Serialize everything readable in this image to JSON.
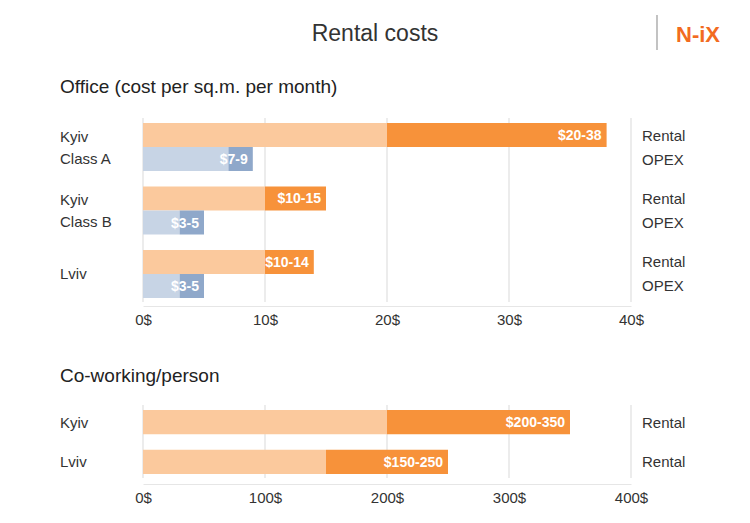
{
  "title": "Rental costs",
  "logo": "N-iX",
  "chart_data": [
    {
      "type": "bar",
      "orientation": "horizontal",
      "title": "Office (cost per sq.m. per month)",
      "categories": [
        "Kyiv\nClass A",
        "Kyiv\nClass B",
        "Lviv"
      ],
      "series": [
        {
          "name": "Rental",
          "color": "#f7923a",
          "values": [
            [
              20,
              38
            ],
            [
              10,
              15
            ],
            [
              10,
              14
            ]
          ],
          "value_labels": [
            "$20-38",
            "$10-15",
            "$10-14"
          ]
        },
        {
          "name": "OPEX",
          "color": "#8fa8ca",
          "values": [
            [
              7,
              9
            ],
            [
              3,
              5
            ],
            [
              3,
              5
            ]
          ],
          "value_labels": [
            "$7-9",
            "$3-5",
            "$3-5"
          ]
        }
      ],
      "xlim": [
        0,
        40
      ],
      "xticks": [
        {
          "value": 0,
          "label": "0$"
        },
        {
          "value": 10,
          "label": "10$"
        },
        {
          "value": 20,
          "label": "20$"
        },
        {
          "value": 30,
          "label": "30$"
        },
        {
          "value": 40,
          "label": "40$"
        }
      ],
      "grid": true,
      "data_labels": true
    },
    {
      "type": "bar",
      "orientation": "horizontal",
      "title": "Co-working/person",
      "categories": [
        "Kyiv",
        "Lviv"
      ],
      "series": [
        {
          "name": "Rental",
          "color": "#f7923a",
          "values": [
            [
              200,
              350
            ],
            [
              150,
              250
            ]
          ],
          "value_labels": [
            "$200-350",
            "$150-250"
          ]
        }
      ],
      "xlim": [
        0,
        400
      ],
      "xticks": [
        {
          "value": 0,
          "label": "0$"
        },
        {
          "value": 100,
          "label": "100$"
        },
        {
          "value": 200,
          "label": "200$"
        },
        {
          "value": 300,
          "label": "300$"
        },
        {
          "value": 400,
          "label": "400$"
        }
      ],
      "grid": true,
      "data_labels": true
    }
  ]
}
